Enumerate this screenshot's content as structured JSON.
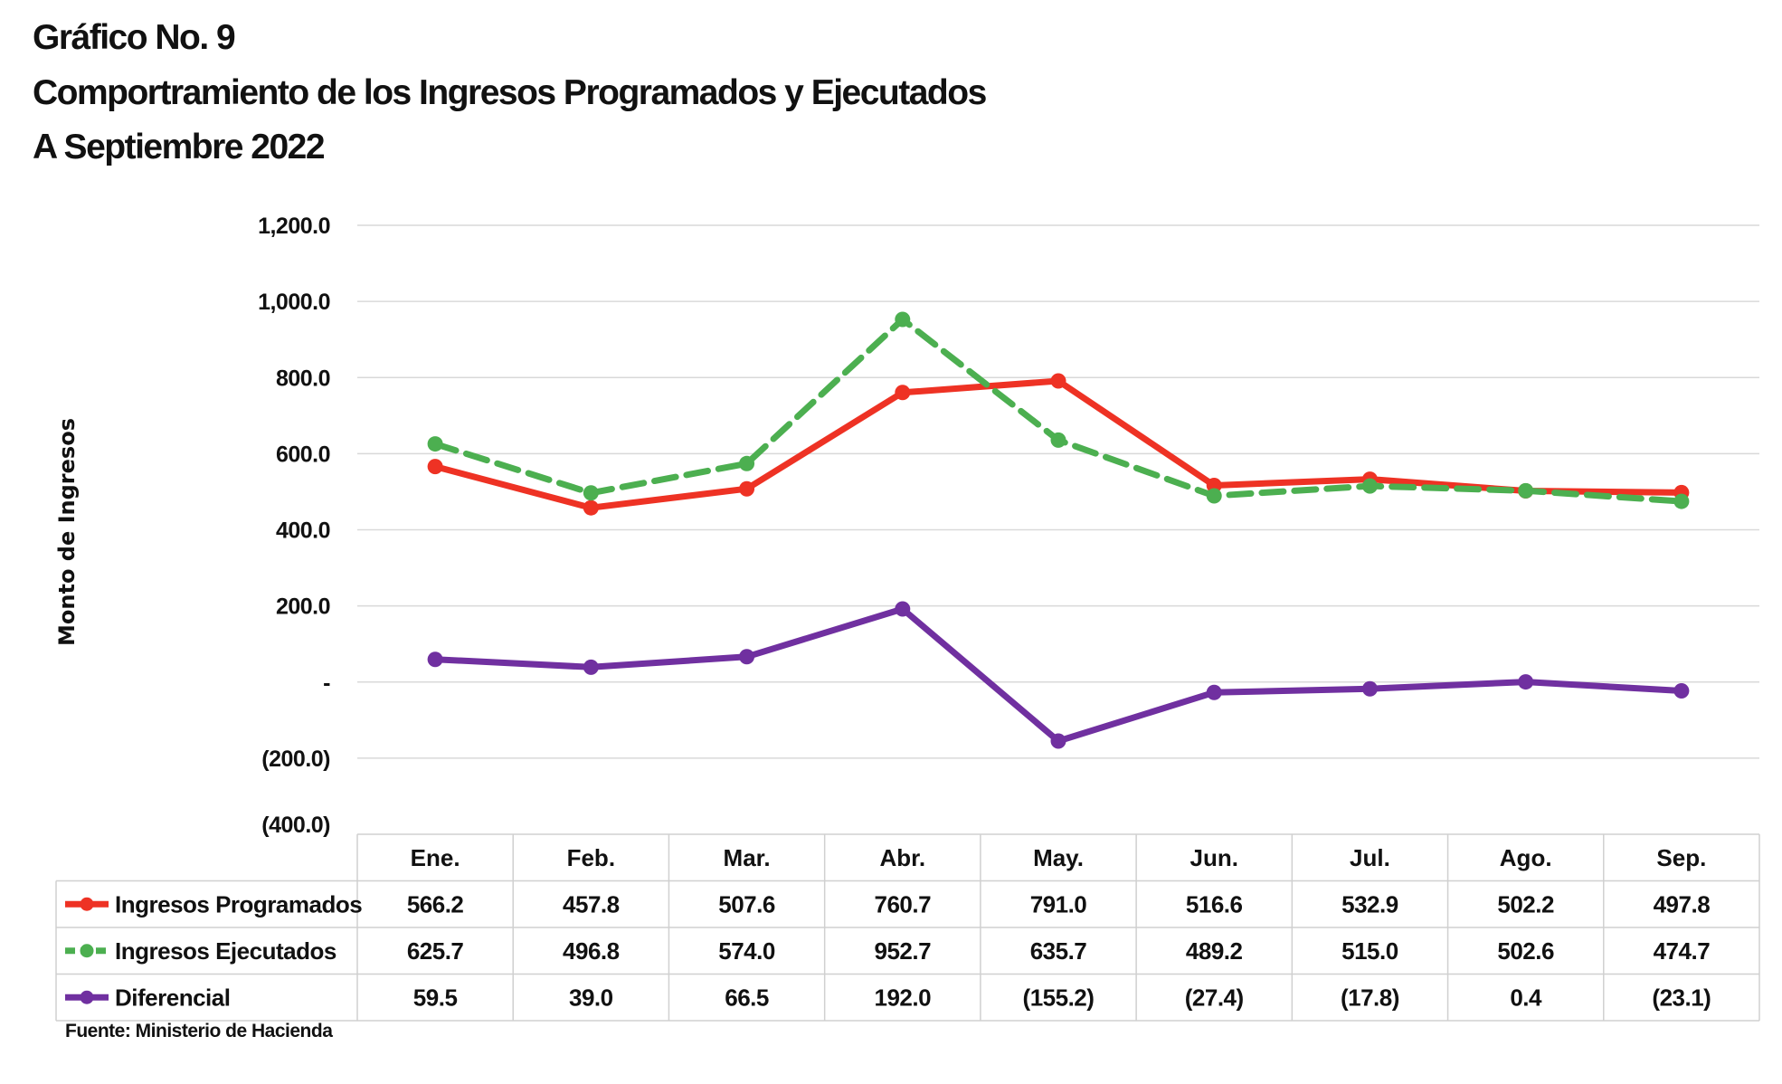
{
  "title": {
    "line1": "Gráfico No. 9",
    "line2": "Comportramiento de los Ingresos Programados y Ejecutados",
    "line3": "A Septiembre 2022"
  },
  "source": "Fuente: Ministerio de Hacienda",
  "chart_data": {
    "type": "line",
    "ylabel": "Monto de Ingresos",
    "ylim": [
      -400,
      1200
    ],
    "yticks": [
      1200,
      1000,
      800,
      600,
      400,
      200,
      0,
      -200,
      -400
    ],
    "ytick_labels": [
      "1,200.0",
      "1,000.0",
      "800.0",
      "600.0",
      "400.0",
      "200.0",
      "-",
      "(200.0)",
      "(400.0)"
    ],
    "grid": true,
    "legend": "data table below chart",
    "categories": [
      "Ene.",
      "Feb.",
      "Mar.",
      "Abr.",
      "May.",
      "Jun.",
      "Jul.",
      "Ago.",
      "Sep."
    ],
    "series": [
      {
        "name": "Ingresos Programados",
        "color": "#ee3224",
        "style": "solid",
        "values": [
          566.2,
          457.8,
          507.6,
          760.7,
          791.0,
          516.6,
          532.9,
          502.2,
          497.8
        ],
        "labels": [
          "566.2",
          "457.8",
          "507.6",
          "760.7",
          "791.0",
          "516.6",
          "532.9",
          "502.2",
          "497.8"
        ]
      },
      {
        "name": "Ingresos Ejecutados",
        "color": "#4caf50",
        "style": "dashed",
        "values": [
          625.7,
          496.8,
          574.0,
          952.7,
          635.7,
          489.2,
          515.0,
          502.6,
          474.7
        ],
        "labels": [
          "625.7",
          "496.8",
          "574.0",
          "952.7",
          "635.7",
          "489.2",
          "515.0",
          "502.6",
          "474.7"
        ]
      },
      {
        "name": "Diferencial",
        "color": "#7030a0",
        "style": "solid",
        "values": [
          59.5,
          39.0,
          66.5,
          192.0,
          -155.2,
          -27.4,
          -17.8,
          0.4,
          -23.1
        ],
        "labels": [
          "59.5",
          "39.0",
          "66.5",
          "192.0",
          "(155.2)",
          "(27.4)",
          "(17.8)",
          "0.4",
          "(23.1)"
        ]
      }
    ]
  }
}
